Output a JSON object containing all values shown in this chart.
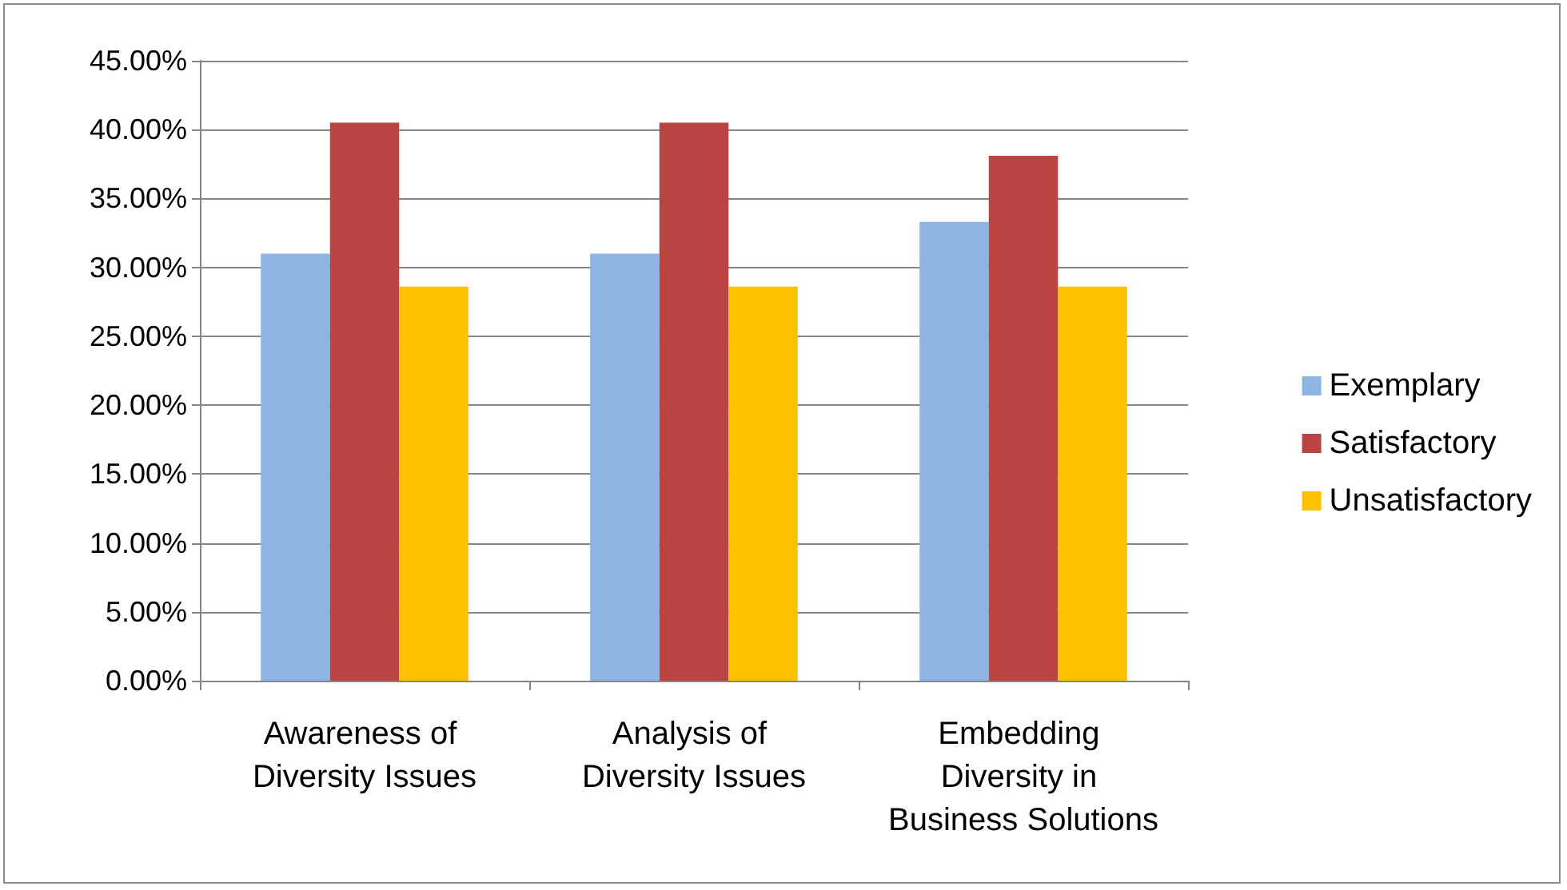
{
  "chart_data": {
    "type": "bar",
    "categories": [
      "Awareness of Diversity Issues",
      "Analysis of Diversity Issues",
      "Embedding Diversity in Business Solutions"
    ],
    "series": [
      {
        "name": "Exemplary",
        "color": "#8eb4e3",
        "values": [
          31,
          31,
          33.3
        ]
      },
      {
        "name": "Satisfactory",
        "color": "#b94441",
        "values": [
          40.5,
          40.5,
          38.1
        ]
      },
      {
        "name": "Unsatisfactory",
        "color": "#ffc000",
        "values": [
          28.6,
          28.6,
          28.6
        ]
      }
    ],
    "ylim": [
      0,
      45
    ],
    "yticks": [
      {
        "value": 0,
        "label": "0.00%"
      },
      {
        "value": 5,
        "label": "5.00%"
      },
      {
        "value": 10,
        "label": "10.00%"
      },
      {
        "value": 15,
        "label": "15.00%"
      },
      {
        "value": 20,
        "label": "20.00%"
      },
      {
        "value": 25,
        "label": "25.00%"
      },
      {
        "value": 30,
        "label": "30.00%"
      },
      {
        "value": 35,
        "label": "35.00%"
      },
      {
        "value": 40,
        "label": "40.00%"
      },
      {
        "value": 45,
        "label": "45.00%"
      }
    ],
    "grid": "y",
    "legend": "right"
  }
}
